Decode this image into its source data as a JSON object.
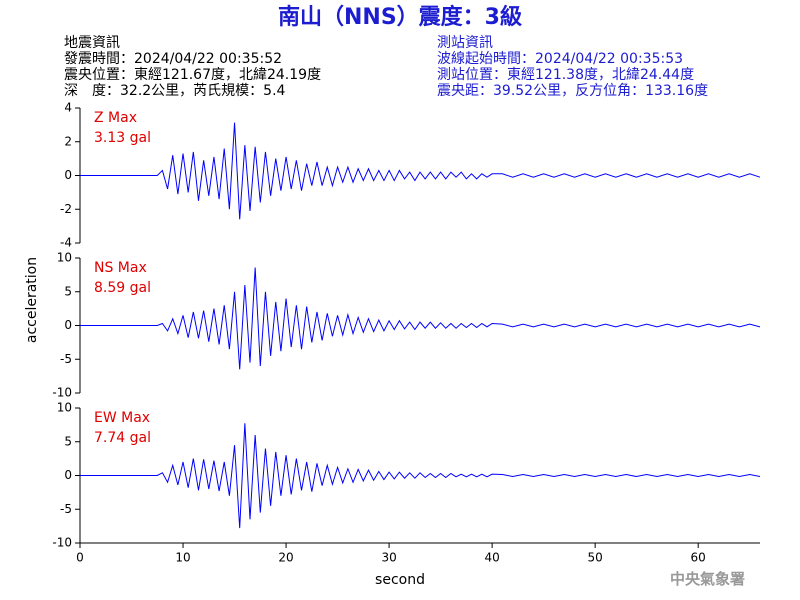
{
  "title": "南山（NNS）震度：3級",
  "event_info": [
    "地震資訊",
    "發震時間：2024/04/22 00:35:52",
    "震央位置：東經121.67度，北緯24.19度",
    "深　度：32.2公里，芮氏規模：5.4"
  ],
  "station_info": [
    "測站資訊",
    "波線起始時間：2024/04/22 00:35:53",
    "測站位置：東經121.38度，北緯24.44度",
    "震央距：39.52公里，反方位角：133.16度"
  ],
  "footer": "中央氣象署",
  "chart_data": [
    {
      "type": "line",
      "annotation": [
        "Z Max",
        "3.13 gal"
      ],
      "annotation_color": "#e00000",
      "color": "#0000ff",
      "x": [
        0,
        7.5,
        8,
        8.5,
        9,
        9.5,
        10,
        10.5,
        11,
        11.5,
        12,
        12.5,
        13,
        13.5,
        14,
        14.5,
        15,
        15.5,
        16,
        16.5,
        17,
        17.5,
        18,
        18.5,
        19,
        19.5,
        20,
        20.5,
        21,
        21.5,
        22,
        22.5,
        23,
        23.5,
        24,
        24.5,
        25,
        25.5,
        26,
        26.5,
        27,
        27.5,
        28,
        28.5,
        29,
        29.5,
        30,
        30.5,
        31,
        31.5,
        32,
        32.5,
        33,
        33.5,
        34,
        34.5,
        35,
        35.5,
        36,
        36.5,
        37,
        37.5,
        38,
        38.5,
        39,
        39.5,
        40,
        41,
        42,
        43,
        44,
        45,
        46,
        47,
        48,
        49,
        50,
        51,
        52,
        53,
        54,
        55,
        56,
        57,
        58,
        59,
        60,
        61,
        62,
        63,
        64,
        65,
        66
      ],
      "values": [
        0,
        0,
        0.3,
        -0.8,
        1.2,
        -1.1,
        1.3,
        -1.0,
        1.4,
        -1.5,
        0.9,
        -1.2,
        1.1,
        -1.4,
        1.6,
        -2.0,
        3.13,
        -2.6,
        1.8,
        -2.1,
        1.7,
        -1.6,
        1.4,
        -1.2,
        1.0,
        -0.9,
        1.1,
        -0.8,
        0.9,
        -0.9,
        0.7,
        -0.6,
        0.8,
        -0.6,
        0.5,
        -0.6,
        0.5,
        -0.4,
        0.5,
        -0.4,
        0.4,
        -0.3,
        0.4,
        -0.3,
        0.3,
        -0.3,
        0.3,
        -0.3,
        0.3,
        -0.2,
        0.2,
        -0.3,
        0.2,
        -0.2,
        0.2,
        -0.2,
        0.2,
        -0.2,
        0.2,
        -0.1,
        0.2,
        -0.2,
        0.1,
        -0.2,
        0.1,
        -0.1,
        0.1,
        0.1,
        -0.1,
        0.1,
        -0.1,
        0.1,
        -0.1,
        0.1,
        -0.1,
        0.1,
        -0.1,
        0.1,
        -0.1,
        0.1,
        -0.1,
        0.1,
        -0.1,
        0.1,
        -0.1,
        0.1,
        -0.1,
        0.1,
        -0.1,
        0.1,
        -0.1,
        0.1,
        -0.1
      ],
      "xlim": [
        0,
        66
      ],
      "ylim": [
        -4,
        4
      ],
      "yticks": [
        -4,
        -2,
        0,
        2,
        4
      ]
    },
    {
      "type": "line",
      "annotation": [
        "NS Max",
        "8.59 gal"
      ],
      "annotation_color": "#e00000",
      "color": "#0000ff",
      "ylabel": "acceleration",
      "x": [
        0,
        7.5,
        8,
        8.5,
        9,
        9.5,
        10,
        10.5,
        11,
        11.5,
        12,
        12.5,
        13,
        13.5,
        14,
        14.5,
        15,
        15.5,
        16,
        16.5,
        17,
        17.5,
        18,
        18.5,
        19,
        19.5,
        20,
        20.5,
        21,
        21.5,
        22,
        22.5,
        23,
        23.5,
        24,
        24.5,
        25,
        25.5,
        26,
        26.5,
        27,
        27.5,
        28,
        28.5,
        29,
        29.5,
        30,
        30.5,
        31,
        31.5,
        32,
        32.5,
        33,
        33.5,
        34,
        34.5,
        35,
        35.5,
        36,
        36.5,
        37,
        37.5,
        38,
        38.5,
        39,
        39.5,
        40,
        41,
        42,
        43,
        44,
        45,
        46,
        47,
        48,
        49,
        50,
        51,
        52,
        53,
        54,
        55,
        56,
        57,
        58,
        59,
        60,
        61,
        62,
        63,
        64,
        65,
        66
      ],
      "values": [
        0,
        0,
        0.3,
        -0.8,
        1.0,
        -1.2,
        1.5,
        -1.8,
        2.0,
        -1.9,
        2.2,
        -2.4,
        2.5,
        -2.8,
        3.0,
        -3.5,
        5.0,
        -6.5,
        6.0,
        -5.5,
        8.59,
        -6.0,
        5.0,
        -4.5,
        3.5,
        -3.8,
        4.0,
        -3.2,
        3.0,
        -3.5,
        2.8,
        -2.5,
        2.0,
        -2.2,
        1.8,
        -1.6,
        1.5,
        -1.4,
        1.6,
        -1.2,
        1.2,
        -1.0,
        1.0,
        -0.9,
        0.8,
        -0.8,
        0.7,
        -0.6,
        0.7,
        -0.5,
        0.5,
        -0.6,
        0.5,
        -0.4,
        0.5,
        -0.4,
        0.4,
        -0.4,
        0.3,
        -0.4,
        0.3,
        -0.3,
        0.3,
        -0.3,
        0.3,
        -0.2,
        0.3,
        0.2,
        -0.2,
        0.2,
        -0.2,
        0.2,
        -0.2,
        0.2,
        -0.2,
        0.2,
        -0.2,
        0.2,
        -0.2,
        0.2,
        -0.2,
        0.2,
        -0.2,
        0.2,
        -0.2,
        0.2,
        -0.2,
        0.2,
        -0.2,
        0.2,
        -0.2,
        0.2,
        -0.2
      ],
      "xlim": [
        0,
        66
      ],
      "ylim": [
        -10,
        10
      ],
      "yticks": [
        -10,
        -5,
        0,
        5,
        10
      ]
    },
    {
      "type": "line",
      "annotation": [
        "EW Max",
        "7.74 gal"
      ],
      "annotation_color": "#e00000",
      "color": "#0000ff",
      "xlabel": "second",
      "x": [
        0,
        7.5,
        8,
        8.5,
        9,
        9.5,
        10,
        10.5,
        11,
        11.5,
        12,
        12.5,
        13,
        13.5,
        14,
        14.5,
        15,
        15.5,
        16,
        16.5,
        17,
        17.5,
        18,
        18.5,
        19,
        19.5,
        20,
        20.5,
        21,
        21.5,
        22,
        22.5,
        23,
        23.5,
        24,
        24.5,
        25,
        25.5,
        26,
        26.5,
        27,
        27.5,
        28,
        28.5,
        29,
        29.5,
        30,
        30.5,
        31,
        31.5,
        32,
        32.5,
        33,
        33.5,
        34,
        34.5,
        35,
        35.5,
        36,
        36.5,
        37,
        37.5,
        38,
        38.5,
        39,
        39.5,
        40,
        41,
        42,
        43,
        44,
        45,
        46,
        47,
        48,
        49,
        50,
        51,
        52,
        53,
        54,
        55,
        56,
        57,
        58,
        59,
        60,
        61,
        62,
        63,
        64,
        65,
        66
      ],
      "values": [
        0,
        0,
        0.4,
        -1.0,
        1.5,
        -1.4,
        2.0,
        -1.8,
        2.5,
        -2.2,
        2.4,
        -2.0,
        2.2,
        -2.3,
        2.0,
        -3.0,
        4.5,
        -7.8,
        7.74,
        -6.5,
        6.0,
        -5.5,
        4.0,
        -4.5,
        3.5,
        -3.0,
        3.0,
        -2.8,
        2.5,
        -2.2,
        2.0,
        -2.4,
        1.8,
        -1.5,
        1.5,
        -1.3,
        1.2,
        -1.1,
        1.0,
        -1.0,
        0.9,
        -0.8,
        0.8,
        -0.7,
        0.6,
        -0.6,
        0.5,
        -0.5,
        0.5,
        -0.4,
        0.4,
        -0.4,
        0.4,
        -0.3,
        0.3,
        -0.3,
        0.3,
        -0.3,
        0.3,
        -0.2,
        0.2,
        -0.2,
        0.2,
        -0.2,
        0.2,
        -0.2,
        0.2,
        0.15,
        -0.15,
        0.15,
        -0.15,
        0.15,
        -0.15,
        0.15,
        -0.15,
        0.15,
        -0.15,
        0.15,
        -0.15,
        0.15,
        -0.15,
        0.15,
        -0.15,
        0.15,
        -0.15,
        0.15,
        -0.15,
        0.15,
        -0.15,
        0.15,
        -0.15,
        0.15,
        -0.15
      ],
      "xlim": [
        0,
        66
      ],
      "ylim": [
        -10,
        10
      ],
      "yticks": [
        -10,
        -5,
        0,
        5,
        10
      ],
      "xticks": [
        0,
        10,
        20,
        30,
        40,
        50,
        60
      ]
    }
  ]
}
